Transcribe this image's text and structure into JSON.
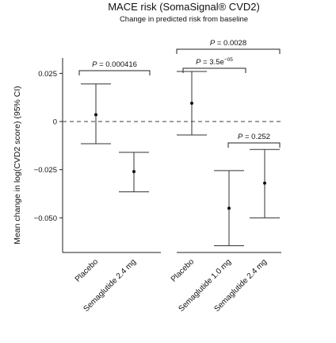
{
  "chart_data": {
    "type": "errorbar",
    "title": "MACE risk (SomaSignal® CVD2)",
    "subtitle": "Change in predicted risk from baseline",
    "ylabel": "Mean change in log(CVD2 score) (95% CI)",
    "ylim": [
      -0.068,
      0.033
    ],
    "yticks": [
      {
        "value": 0.025,
        "label": "0.025"
      },
      {
        "value": 0,
        "label": "0"
      },
      {
        "value": -0.025,
        "label": "−0.025"
      },
      {
        "value": -0.05,
        "label": "−0.050"
      }
    ],
    "reference_line": 0,
    "colors": {
      "point": "#111111",
      "whisker": "#333333",
      "reference": "#555555"
    },
    "panels": [
      {
        "categories": [
          {
            "label": "Placebo",
            "mean": 0.0035,
            "lower": -0.0115,
            "upper": 0.0195
          },
          {
            "label": "Semaglutide 2.4 mg",
            "mean": -0.026,
            "lower": -0.0365,
            "upper": -0.016
          }
        ],
        "comparisons": [
          {
            "from": 0,
            "to": 1,
            "p": "0.000416"
          }
        ]
      },
      {
        "categories": [
          {
            "label": "Placebo",
            "mean": 0.0095,
            "lower": -0.007,
            "upper": 0.026
          },
          {
            "label": "Semaglutide 1.0 mg",
            "mean": -0.045,
            "lower": -0.0645,
            "upper": -0.0255
          },
          {
            "label": "Semaglutide 2.4 mg",
            "mean": -0.032,
            "lower": -0.05,
            "upper": -0.0145
          }
        ],
        "comparisons": [
          {
            "from": 0,
            "to": 2,
            "p": "0.0028",
            "level": 2
          },
          {
            "from": 0,
            "to": 1,
            "p": "3.5e",
            "p_exp": "−05",
            "level": 1
          },
          {
            "from": 1,
            "to": 2,
            "p": "0.252",
            "level": 0
          }
        ]
      }
    ]
  }
}
